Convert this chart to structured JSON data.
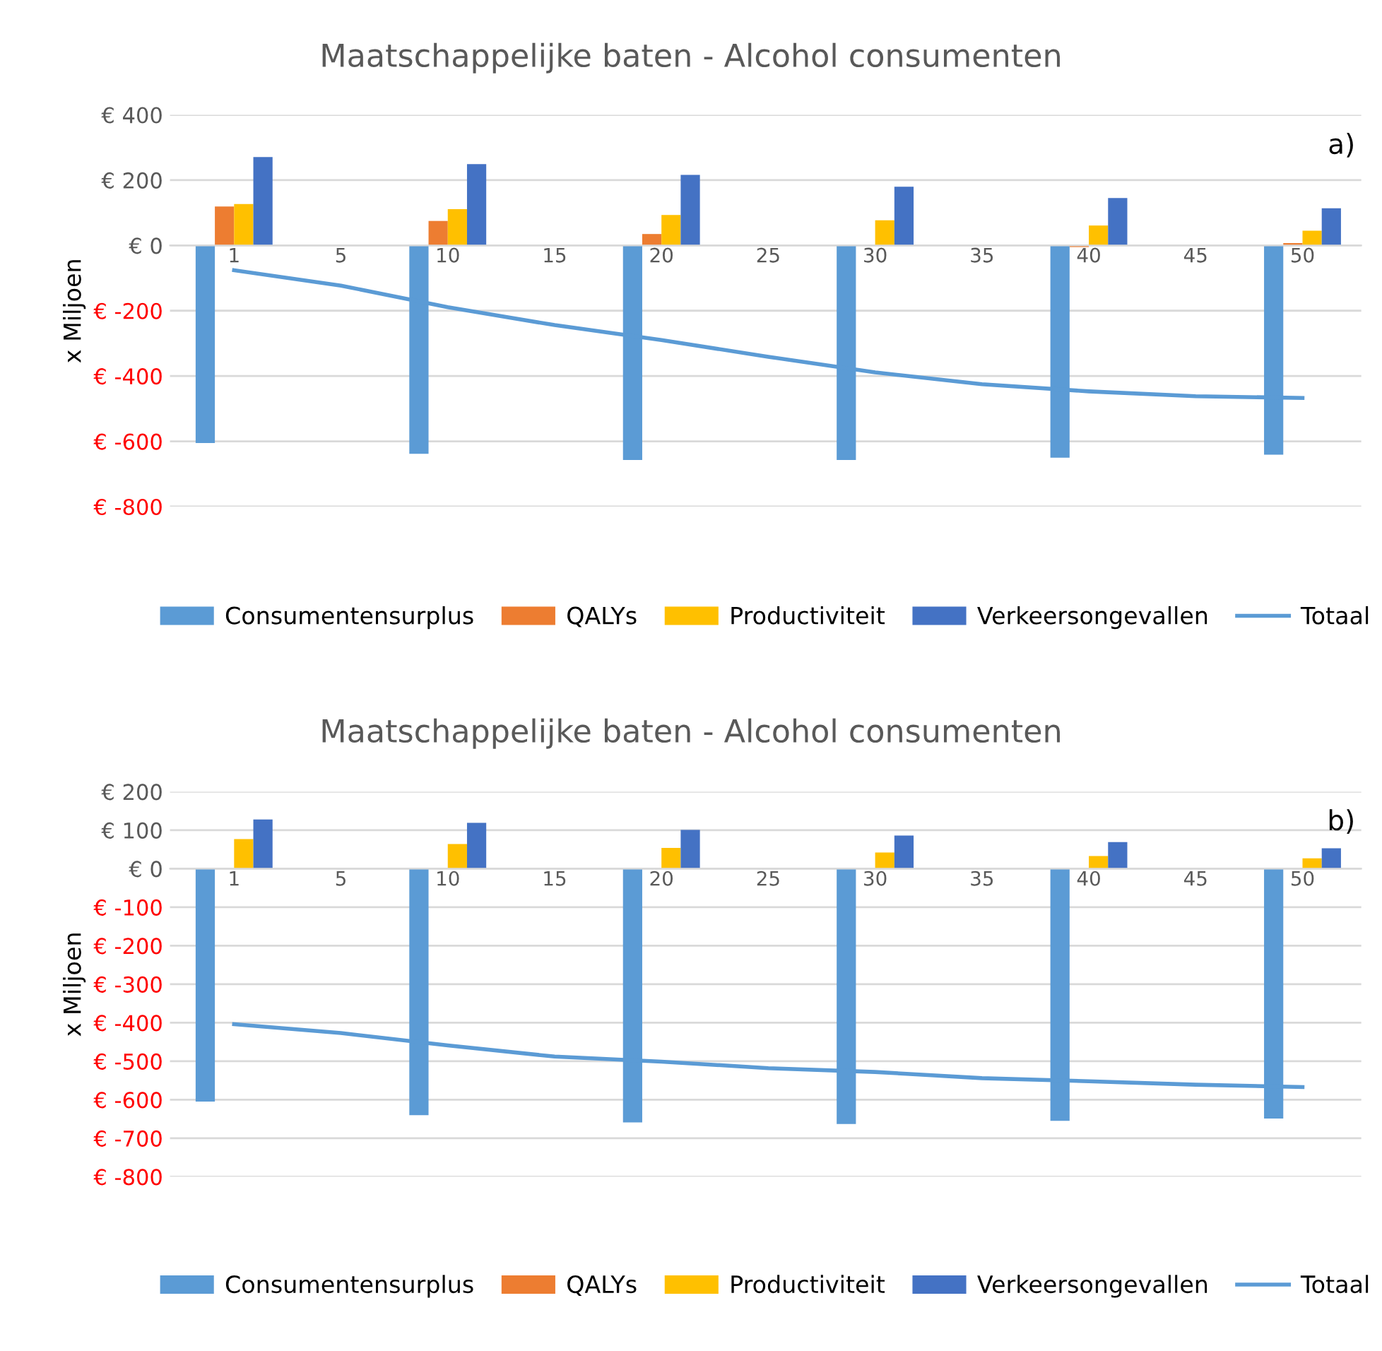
{
  "chart_data": [
    {
      "type": "bar",
      "title": "Maatschappelijke baten - Alcohol consumenten",
      "ylabel": "x Miljoen",
      "annotations": [
        "a)"
      ],
      "categories": [
        "1",
        "5",
        "10",
        "15",
        "20",
        "25",
        "30",
        "35",
        "40",
        "45",
        "50"
      ],
      "series": [
        {
          "name": "Consumentensurplus",
          "color": "#5b9bd5",
          "values": [
            -605,
            null,
            -638,
            null,
            -657,
            null,
            -657,
            null,
            -650,
            null,
            -641
          ]
        },
        {
          "name": "QALYs",
          "color": "#ed7d31",
          "values": [
            119,
            null,
            75,
            null,
            35,
            null,
            0,
            null,
            -5,
            null,
            7
          ]
        },
        {
          "name": "Productiviteit",
          "color": "#ffc000",
          "values": [
            127,
            null,
            111,
            null,
            93,
            null,
            77,
            null,
            61,
            null,
            45
          ]
        },
        {
          "name": "Verkeersongevallen",
          "color": "#4472c4",
          "values": [
            271,
            null,
            249,
            null,
            216,
            null,
            180,
            null,
            145,
            null,
            114
          ]
        },
        {
          "name": "Totaal",
          "type": "line",
          "color": "#5b9bd5",
          "values": [
            -76,
            -123,
            -189,
            -244,
            -290,
            -341,
            -389,
            -425,
            -447,
            -462,
            -467
          ]
        }
      ],
      "ylim": [
        -800,
        400
      ],
      "yticks": [
        {
          "value": 400,
          "label": "€ 400"
        },
        {
          "value": 200,
          "label": "€ 200"
        },
        {
          "value": 0,
          "label": "€ 0"
        },
        {
          "value": -200,
          "label": "€ -200"
        },
        {
          "value": -400,
          "label": "€ -400"
        },
        {
          "value": -600,
          "label": "€ -600"
        },
        {
          "value": -800,
          "label": "€ -800"
        }
      ],
      "grid": "y",
      "legend": "bottom",
      "marker": "none",
      "line_style": "solid"
    },
    {
      "type": "bar",
      "title": "Maatschappelijke baten - Alcohol consumenten",
      "ylabel": "x Miljoen",
      "annotations": [
        "b)"
      ],
      "categories": [
        "1",
        "5",
        "10",
        "15",
        "20",
        "25",
        "30",
        "35",
        "40",
        "45",
        "50"
      ],
      "series": [
        {
          "name": "Consumentensurplus",
          "color": "#5b9bd5",
          "values": [
            -605,
            null,
            -640,
            null,
            -659,
            null,
            -663,
            null,
            -655,
            null,
            -649
          ]
        },
        {
          "name": "QALYs",
          "color": "#ed7d31",
          "values": [
            0,
            null,
            0,
            null,
            0,
            null,
            0,
            null,
            0,
            null,
            0
          ]
        },
        {
          "name": "Productiviteit",
          "color": "#ffc000",
          "values": [
            77,
            null,
            64,
            null,
            54,
            null,
            42,
            null,
            33,
            null,
            27
          ]
        },
        {
          "name": "Verkeersongevallen",
          "color": "#4472c4",
          "values": [
            128,
            null,
            119,
            null,
            101,
            null,
            86,
            null,
            69,
            null,
            53
          ]
        },
        {
          "name": "Totaal",
          "type": "line",
          "color": "#5b9bd5",
          "values": [
            -404,
            -427,
            -459,
            -488,
            -501,
            -518,
            -528,
            -544,
            -552,
            -561,
            -567
          ]
        }
      ],
      "ylim": [
        -800,
        200
      ],
      "yticks": [
        {
          "value": 200,
          "label": "€ 200"
        },
        {
          "value": 100,
          "label": "€ 100"
        },
        {
          "value": 0,
          "label": "€ 0"
        },
        {
          "value": -100,
          "label": "€ -100"
        },
        {
          "value": -200,
          "label": "€ -200"
        },
        {
          "value": -300,
          "label": "€ -300"
        },
        {
          "value": -400,
          "label": "€ -400"
        },
        {
          "value": -500,
          "label": "€ -500"
        },
        {
          "value": -600,
          "label": "€ -600"
        },
        {
          "value": -700,
          "label": "€ -700"
        },
        {
          "value": -800,
          "label": "€ -800"
        }
      ],
      "grid": "y",
      "legend": "bottom",
      "marker": "none",
      "line_style": "solid"
    }
  ]
}
